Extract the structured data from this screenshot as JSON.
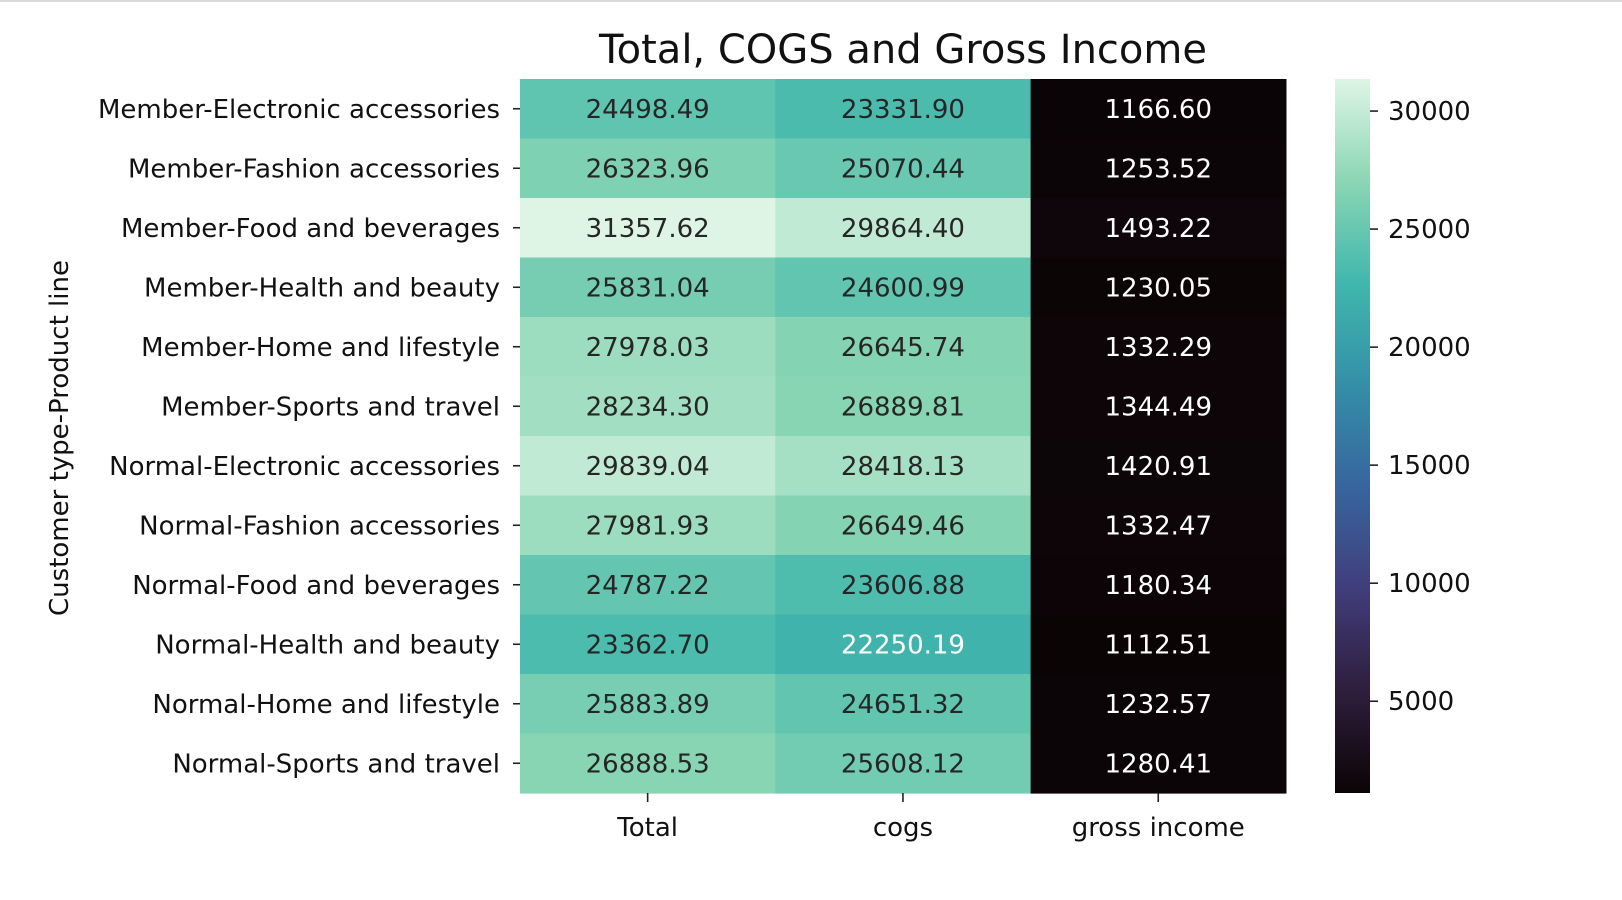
{
  "chart_data": {
    "type": "heatmap",
    "title": "Total, COGS and Gross Income",
    "ylabel": "Customer type-Product line",
    "xlabel": "",
    "columns": [
      "Total",
      "cogs",
      "gross income"
    ],
    "rows": [
      "Member-Electronic accessories",
      "Member-Fashion accessories",
      "Member-Food and beverages",
      "Member-Health and beauty",
      "Member-Home and lifestyle",
      "Member-Sports and travel",
      "Normal-Electronic accessories",
      "Normal-Fashion accessories",
      "Normal-Food and beverages",
      "Normal-Health and beauty",
      "Normal-Home and lifestyle",
      "Normal-Sports and travel"
    ],
    "values": [
      [
        24498.49,
        23331.9,
        1166.6
      ],
      [
        26323.96,
        25070.44,
        1253.52
      ],
      [
        31357.62,
        29864.4,
        1493.22
      ],
      [
        25831.04,
        24600.99,
        1230.05
      ],
      [
        27978.03,
        26645.74,
        1332.29
      ],
      [
        28234.3,
        26889.81,
        1344.49
      ],
      [
        29839.04,
        28418.13,
        1420.91
      ],
      [
        27981.93,
        26649.46,
        1332.47
      ],
      [
        24787.22,
        23606.88,
        1180.34
      ],
      [
        23362.7,
        22250.19,
        1112.51
      ],
      [
        25883.89,
        24651.32,
        1232.57
      ],
      [
        26888.53,
        25608.12,
        1280.41
      ]
    ],
    "value_format": "2 decimals",
    "colormap": "mako",
    "colorbar": {
      "vmin": 1112.51,
      "vmax": 31357.62,
      "ticks": [
        5000,
        10000,
        15000,
        20000,
        25000,
        30000
      ],
      "tick_labels": [
        "5000",
        "10000",
        "15000",
        "20000",
        "25000",
        "30000"
      ]
    },
    "colormap_stops": [
      "#0b0405",
      "#2e1e3c",
      "#413d7b",
      "#37659e",
      "#348fa7",
      "#40b7ad",
      "#8bd6b4",
      "#def5e5"
    ]
  }
}
